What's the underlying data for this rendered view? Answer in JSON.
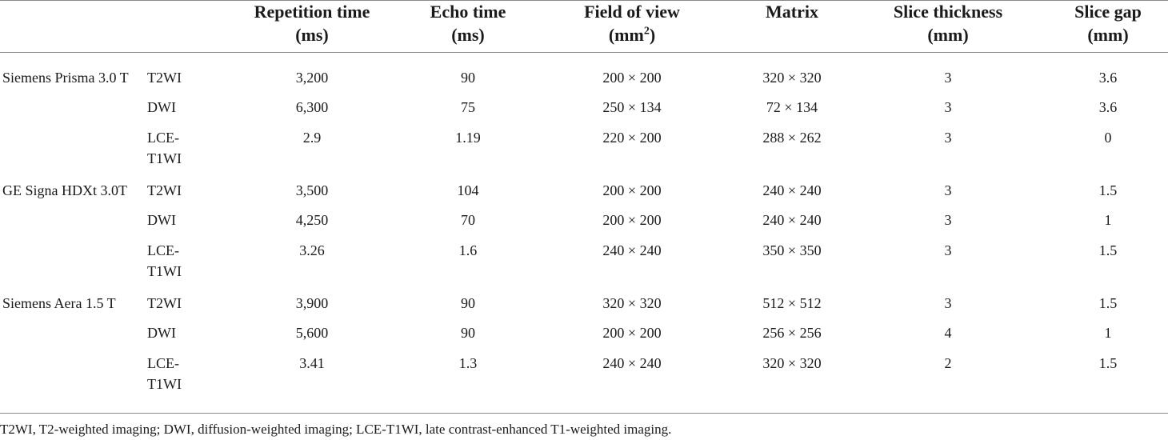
{
  "headers": {
    "repetition_time": [
      "Repetition time",
      "(ms)"
    ],
    "echo_time": [
      "Echo time",
      "(ms)"
    ],
    "field_of_view": [
      "Field of view",
      "(mm",
      "2",
      ")"
    ],
    "matrix": [
      "Matrix"
    ],
    "slice_thickness": [
      "Slice thickness",
      "(mm)"
    ],
    "slice_gap": [
      "Slice gap",
      "(mm)"
    ]
  },
  "groups": [
    {
      "scanner": "Siemens Prisma 3.0 T",
      "rows": [
        {
          "sequence": "T2WI",
          "repetition_time": "3,200",
          "echo_time": "90",
          "field_of_view": "200 × 200",
          "matrix": "320 × 320",
          "slice_thickness": "3",
          "slice_gap": "3.6"
        },
        {
          "sequence": "DWI",
          "repetition_time": "6,300",
          "echo_time": "75",
          "field_of_view": "250 × 134",
          "matrix": "72 × 134",
          "slice_thickness": "3",
          "slice_gap": "3.6"
        },
        {
          "sequence": "LCE-T1WI",
          "repetition_time": "2.9",
          "echo_time": "1.19",
          "field_of_view": "220 × 200",
          "matrix": "288 × 262",
          "slice_thickness": "3",
          "slice_gap": "0"
        }
      ]
    },
    {
      "scanner": "GE Signa HDXt 3.0T",
      "rows": [
        {
          "sequence": "T2WI",
          "repetition_time": "3,500",
          "echo_time": "104",
          "field_of_view": "200 × 200",
          "matrix": "240 × 240",
          "slice_thickness": "3",
          "slice_gap": "1.5"
        },
        {
          "sequence": "DWI",
          "repetition_time": "4,250",
          "echo_time": "70",
          "field_of_view": "200 × 200",
          "matrix": "240 × 240",
          "slice_thickness": "3",
          "slice_gap": "1"
        },
        {
          "sequence": "LCE-T1WI",
          "repetition_time": "3.26",
          "echo_time": "1.6",
          "field_of_view": "240 × 240",
          "matrix": "350 × 350",
          "slice_thickness": "3",
          "slice_gap": "1.5"
        }
      ]
    },
    {
      "scanner": "Siemens Aera 1.5 T",
      "rows": [
        {
          "sequence": "T2WI",
          "repetition_time": "3,900",
          "echo_time": "90",
          "field_of_view": "320 × 320",
          "matrix": "512 × 512",
          "slice_thickness": "3",
          "slice_gap": "1.5"
        },
        {
          "sequence": "DWI",
          "repetition_time": "5,600",
          "echo_time": "90",
          "field_of_view": "200 × 200",
          "matrix": "256 × 256",
          "slice_thickness": "4",
          "slice_gap": "1"
        },
        {
          "sequence": "LCE-T1WI",
          "repetition_time": "3.41",
          "echo_time": "1.3",
          "field_of_view": "240 × 240",
          "matrix": "320 × 320",
          "slice_thickness": "2",
          "slice_gap": "1.5"
        }
      ]
    }
  ],
  "footnote": "T2WI, T2-weighted imaging; DWI, diffusion-weighted imaging; LCE-T1WI, late contrast-enhanced T1-weighted imaging."
}
